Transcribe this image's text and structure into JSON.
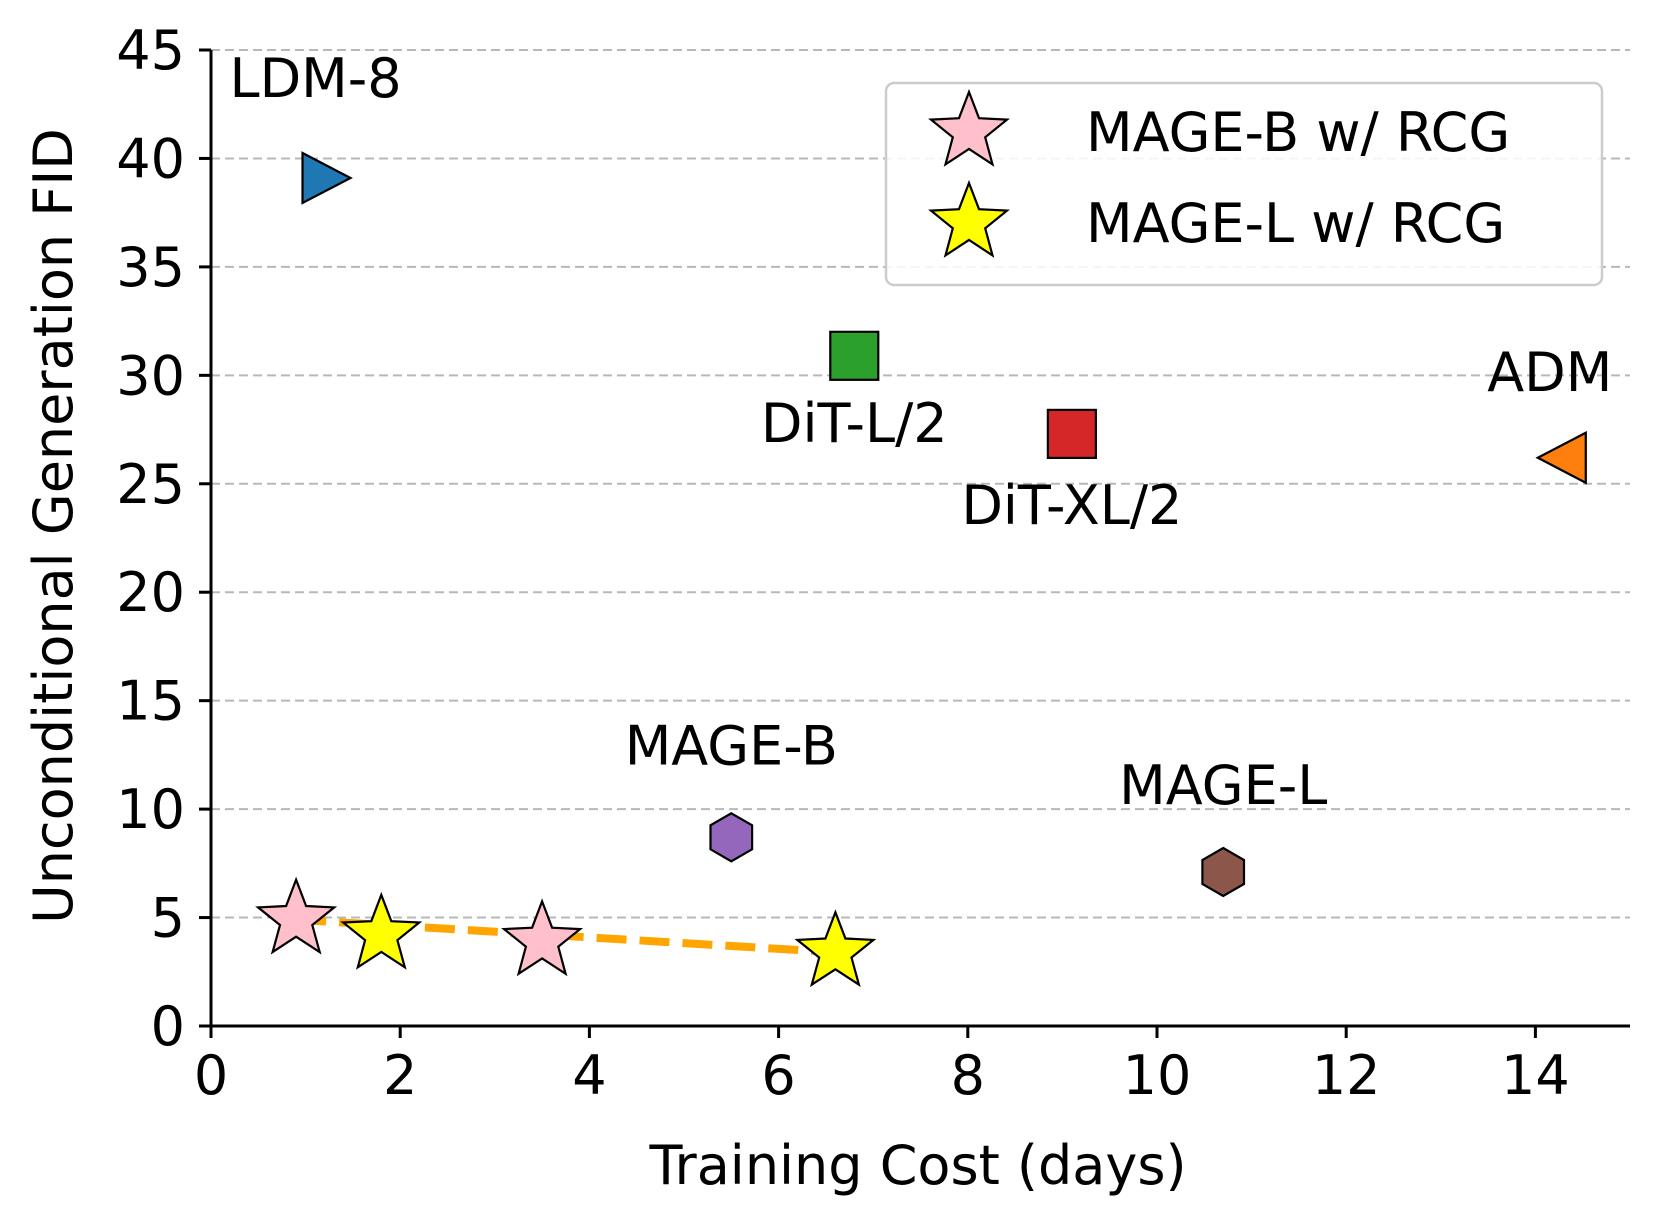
{
  "chart_data": {
    "type": "scatter",
    "xlabel": "Training Cost (days)",
    "ylabel": "Unconditional Generation FID",
    "xlim": [
      0,
      15
    ],
    "ylim": [
      0,
      45
    ],
    "xticks": [
      0,
      2,
      4,
      6,
      8,
      10,
      12,
      14
    ],
    "yticks": [
      0,
      5,
      10,
      15,
      20,
      25,
      30,
      35,
      40,
      45
    ],
    "grid": "y-dashed",
    "legend_position": "top-right",
    "legend": [
      {
        "label": "MAGE-B w/ RCG",
        "marker": "star",
        "color": "#ffc0cb"
      },
      {
        "label": "MAGE-L w/ RCG",
        "marker": "star",
        "color": "#ffff00"
      }
    ],
    "points": [
      {
        "label": "LDM-8",
        "x": 1.2,
        "y": 39.1,
        "marker": "triangle-right",
        "color": "#1f77b4"
      },
      {
        "label": "DiT-L/2",
        "x": 6.8,
        "y": 30.9,
        "marker": "square",
        "color": "#2ca02c"
      },
      {
        "label": "DiT-XL/2",
        "x": 9.1,
        "y": 27.3,
        "marker": "square",
        "color": "#d62728"
      },
      {
        "label": "ADM",
        "x": 14.3,
        "y": 26.2,
        "marker": "triangle-left",
        "color": "#ff7f0e"
      },
      {
        "label": "MAGE-B",
        "x": 5.5,
        "y": 8.7,
        "marker": "hexagon",
        "color": "#9467bd"
      },
      {
        "label": "MAGE-L",
        "x": 10.7,
        "y": 7.1,
        "marker": "hexagon",
        "color": "#8c564b"
      }
    ],
    "series": [
      {
        "name": "MAGE-B w/ RCG",
        "marker": "star",
        "color": "#ffc0cb",
        "points": [
          {
            "x": 0.9,
            "y": 4.9
          },
          {
            "x": 3.5,
            "y": 3.9
          }
        ]
      },
      {
        "name": "MAGE-L w/ RCG",
        "marker": "star",
        "color": "#ffff00",
        "points": [
          {
            "x": 1.8,
            "y": 4.2
          },
          {
            "x": 6.6,
            "y": 3.4
          }
        ]
      }
    ],
    "trend_line": {
      "color": "#ffa500",
      "style": "dashed",
      "points": [
        {
          "x": 0.9,
          "y": 4.9
        },
        {
          "x": 6.6,
          "y": 3.4
        }
      ]
    }
  }
}
